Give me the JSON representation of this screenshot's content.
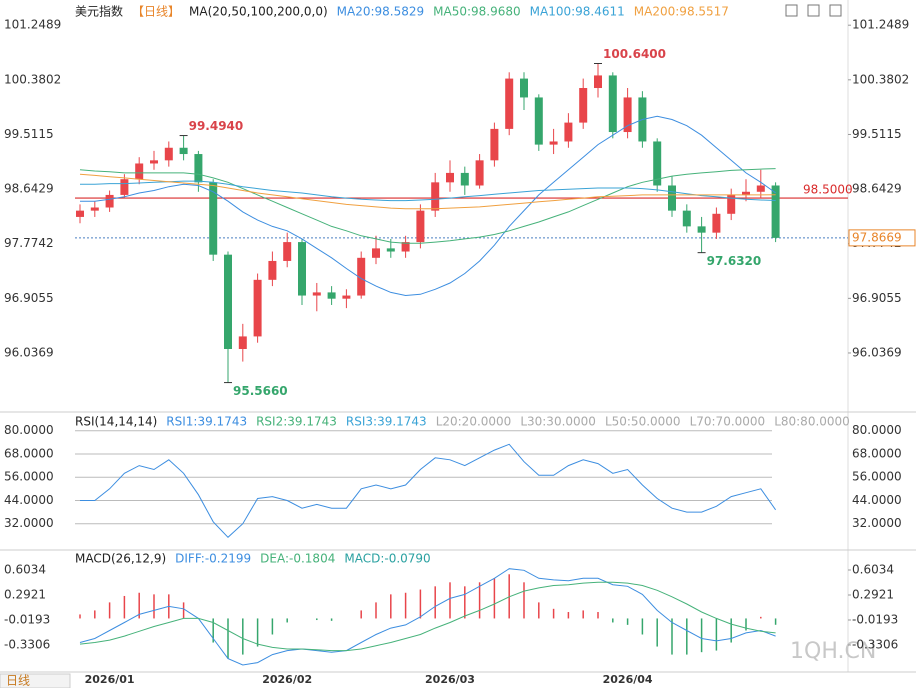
{
  "chart_data": [
    {
      "type": "candlestick",
      "title": "美元指数",
      "period": "【日线】",
      "indicator": "MA(20,50,100,200,0,0)",
      "categories": [
        null,
        null,
        "2026/01",
        null,
        null,
        null,
        null,
        null,
        null,
        null,
        null,
        null,
        null,
        null,
        "2026/02",
        null,
        null,
        null,
        null,
        null,
        null,
        null,
        null,
        null,
        null,
        "2026/03",
        null,
        null,
        null,
        null,
        null,
        null,
        null,
        null,
        null,
        null,
        null,
        "2026/04",
        null,
        null,
        null,
        null,
        null,
        null,
        null,
        null,
        null,
        null
      ],
      "candles": [
        [
          98.2,
          98.4,
          98.1,
          98.3
        ],
        [
          98.3,
          98.45,
          98.2,
          98.35
        ],
        [
          98.35,
          98.62,
          98.28,
          98.55
        ],
        [
          98.55,
          98.88,
          98.5,
          98.8
        ],
        [
          98.8,
          99.15,
          98.72,
          99.05
        ],
        [
          99.05,
          99.25,
          98.95,
          99.1
        ],
        [
          99.1,
          99.4,
          99.0,
          99.3
        ],
        [
          99.3,
          99.494,
          99.1,
          99.2
        ],
        [
          99.2,
          99.25,
          98.6,
          98.75
        ],
        [
          98.75,
          98.8,
          97.5,
          97.6
        ],
        [
          97.6,
          97.65,
          95.566,
          96.1
        ],
        [
          96.1,
          96.5,
          95.9,
          96.3
        ],
        [
          96.3,
          97.3,
          96.2,
          97.2
        ],
        [
          97.2,
          97.65,
          97.1,
          97.5
        ],
        [
          97.5,
          97.95,
          97.4,
          97.8
        ],
        [
          97.8,
          97.85,
          96.8,
          96.95
        ],
        [
          96.95,
          97.15,
          96.7,
          97.0
        ],
        [
          97.0,
          97.1,
          96.8,
          96.9
        ],
        [
          96.9,
          97.05,
          96.75,
          96.95
        ],
        [
          96.95,
          97.65,
          96.9,
          97.55
        ],
        [
          97.55,
          97.9,
          97.45,
          97.7
        ],
        [
          97.7,
          97.85,
          97.55,
          97.65
        ],
        [
          97.65,
          97.9,
          97.55,
          97.8
        ],
        [
          97.8,
          98.4,
          97.7,
          98.3
        ],
        [
          98.3,
          98.9,
          98.2,
          98.75
        ],
        [
          98.75,
          99.1,
          98.6,
          98.9
        ],
        [
          98.9,
          99.0,
          98.55,
          98.7
        ],
        [
          98.7,
          99.2,
          98.65,
          99.1
        ],
        [
          99.1,
          99.7,
          99.0,
          99.6
        ],
        [
          99.6,
          100.5,
          99.5,
          100.4
        ],
        [
          100.4,
          100.5,
          99.9,
          100.1
        ],
        [
          100.1,
          100.15,
          99.25,
          99.35
        ],
        [
          99.35,
          99.6,
          99.2,
          99.4
        ],
        [
          99.4,
          99.85,
          99.3,
          99.7
        ],
        [
          99.7,
          100.4,
          99.6,
          100.25
        ],
        [
          100.25,
          100.64,
          100.1,
          100.45
        ],
        [
          100.45,
          100.5,
          99.45,
          99.55
        ],
        [
          99.55,
          100.25,
          99.45,
          100.1
        ],
        [
          100.1,
          100.2,
          99.3,
          99.4
        ],
        [
          99.4,
          99.45,
          98.6,
          98.7
        ],
        [
          98.7,
          98.85,
          98.2,
          98.3
        ],
        [
          98.3,
          98.4,
          97.95,
          98.05
        ],
        [
          98.05,
          98.2,
          97.632,
          97.95
        ],
        [
          97.95,
          98.35,
          97.85,
          98.25
        ],
        [
          98.25,
          98.65,
          98.15,
          98.55
        ],
        [
          98.55,
          98.8,
          98.45,
          98.6
        ],
        [
          98.6,
          98.95,
          98.5,
          98.7
        ],
        [
          98.7,
          98.75,
          97.8,
          97.8669
        ]
      ],
      "up_color": "#e8454a",
      "down_color": "#35a66c",
      "series": [
        {
          "name": "MA20:98.5829",
          "color": "#3d8ee0",
          "values": [
            98.45,
            98.45,
            98.48,
            98.52,
            98.58,
            98.62,
            98.68,
            98.72,
            98.7,
            98.6,
            98.45,
            98.28,
            98.15,
            98.05,
            97.98,
            97.85,
            97.7,
            97.55,
            97.38,
            97.22,
            97.1,
            97.0,
            96.95,
            96.97,
            97.05,
            97.15,
            97.3,
            97.5,
            97.75,
            98.05,
            98.3,
            98.55,
            98.75,
            98.95,
            99.15,
            99.35,
            99.5,
            99.65,
            99.75,
            99.8,
            99.75,
            99.65,
            99.5,
            99.3,
            99.1,
            98.9,
            98.75,
            98.5829
          ]
        },
        {
          "name": "MA50:98.9680",
          "color": "#46b27a",
          "values": [
            98.95,
            98.93,
            98.92,
            98.9,
            98.9,
            98.9,
            98.9,
            98.9,
            98.88,
            98.82,
            98.75,
            98.65,
            98.55,
            98.45,
            98.35,
            98.25,
            98.15,
            98.05,
            97.98,
            97.9,
            97.85,
            97.8,
            97.78,
            97.78,
            97.8,
            97.82,
            97.85,
            97.88,
            97.92,
            97.98,
            98.05,
            98.12,
            98.2,
            98.28,
            98.38,
            98.48,
            98.58,
            98.68,
            98.75,
            98.8,
            98.85,
            98.88,
            98.9,
            98.92,
            98.94,
            98.95,
            98.96,
            98.968
          ]
        },
        {
          "name": "MA100:98.4611",
          "color": "#3aa3d6",
          "values": [
            98.72,
            98.72,
            98.73,
            98.73,
            98.74,
            98.75,
            98.76,
            98.77,
            98.77,
            98.75,
            98.72,
            98.68,
            98.65,
            98.62,
            98.6,
            98.58,
            98.55,
            98.52,
            98.5,
            98.48,
            98.47,
            98.46,
            98.46,
            98.47,
            98.48,
            98.5,
            98.52,
            98.54,
            98.56,
            98.58,
            98.6,
            98.62,
            98.63,
            98.64,
            98.65,
            98.66,
            98.66,
            98.66,
            98.65,
            98.63,
            98.6,
            98.57,
            98.54,
            98.52,
            98.5,
            98.48,
            98.47,
            98.4611
          ]
        },
        {
          "name": "MA200:98.5517",
          "color": "#f0a040",
          "values": [
            98.88,
            98.86,
            98.84,
            98.82,
            98.8,
            98.78,
            98.76,
            98.74,
            98.72,
            98.7,
            98.66,
            98.62,
            98.58,
            98.55,
            98.52,
            98.49,
            98.46,
            98.43,
            98.4,
            98.38,
            98.36,
            98.34,
            98.33,
            98.33,
            98.33,
            98.34,
            98.35,
            98.36,
            98.38,
            98.4,
            98.42,
            98.44,
            98.46,
            98.48,
            98.5,
            98.52,
            98.53,
            98.54,
            98.55,
            98.55,
            98.55,
            98.55,
            98.55,
            98.55,
            98.55,
            98.55,
            98.55,
            98.5517
          ]
        }
      ],
      "ylim": [
        95.13,
        101.57
      ],
      "yticks": [
        101.2489,
        100.3802,
        99.5115,
        98.6429,
        97.7742,
        96.9055,
        96.0369
      ],
      "annotations": [
        {
          "value": 99.494,
          "label": "99.4940"
        },
        {
          "value": 95.566,
          "label": "95.5660"
        },
        {
          "value": 100.64,
          "label": "100.6400"
        },
        {
          "value": 97.632,
          "label": "97.6320"
        }
      ],
      "ref_line": {
        "value": 98.5,
        "label": "98.5000",
        "color": "#d92b2b"
      },
      "last_price": {
        "value": 97.8669,
        "label": "97.8669",
        "color": "#e8852a"
      }
    },
    {
      "type": "line",
      "title": "RSI(14,14,14)",
      "ylim": [
        20,
        85
      ],
      "yticks": [
        {
          "value": 80,
          "label": "80.0000"
        },
        {
          "value": 68,
          "label": "68.0000"
        },
        {
          "value": 56,
          "label": "56.0000"
        },
        {
          "value": 44,
          "label": "44.0000"
        },
        {
          "value": 32,
          "label": "32.0000"
        }
      ],
      "grid": true,
      "series": [
        {
          "name": "RSI1:39.1743",
          "color": "#3d8ee0",
          "values": [
            44,
            44,
            50,
            58,
            62,
            60,
            65,
            58,
            47,
            33,
            25,
            32,
            45,
            46,
            44,
            40,
            42,
            40,
            40,
            50,
            52,
            50,
            52,
            60,
            66,
            65,
            62,
            66,
            70,
            73,
            64,
            57,
            57,
            62,
            65,
            63,
            58,
            60,
            52,
            45,
            40,
            38,
            38,
            41,
            46,
            48,
            50,
            39.1743
          ]
        }
      ],
      "legend": [
        {
          "label": "RSI2:39.1743",
          "color": "#46b27a"
        },
        {
          "label": "RSI3:39.1743",
          "color": "#3aa3d6"
        },
        {
          "label": "L20:20.0000",
          "color": "#aaaaaa"
        },
        {
          "label": "L30:30.0000",
          "color": "#aaaaaa"
        },
        {
          "label": "L50:50.0000",
          "color": "#aaaaaa"
        },
        {
          "label": "L70:70.0000",
          "color": "#aaaaaa"
        },
        {
          "label": "L80:80.0000",
          "color": "#aaaaaa"
        }
      ]
    },
    {
      "type": "macd",
      "title": "MACD(26,12,9)",
      "ylim": [
        -0.667,
        0.703
      ],
      "yticks": [
        0.6034,
        0.2921,
        -0.0193,
        -0.3306
      ],
      "series": [
        {
          "name": "DIFF:-0.2199",
          "color": "#3d8ee0",
          "values": [
            -0.3,
            -0.25,
            -0.15,
            -0.05,
            0.05,
            0.1,
            0.15,
            0.12,
            0.0,
            -0.25,
            -0.5,
            -0.58,
            -0.55,
            -0.45,
            -0.4,
            -0.38,
            -0.4,
            -0.42,
            -0.4,
            -0.3,
            -0.2,
            -0.12,
            -0.08,
            0.02,
            0.15,
            0.25,
            0.3,
            0.4,
            0.5,
            0.62,
            0.6,
            0.5,
            0.48,
            0.47,
            0.5,
            0.5,
            0.42,
            0.4,
            0.3,
            0.1,
            -0.05,
            -0.15,
            -0.25,
            -0.28,
            -0.25,
            -0.18,
            -0.15,
            -0.2199
          ]
        },
        {
          "name": "DEA:-0.1804",
          "color": "#46b27a",
          "values": [
            -0.32,
            -0.3,
            -0.27,
            -0.22,
            -0.16,
            -0.1,
            -0.05,
            0.0,
            0.0,
            -0.05,
            -0.15,
            -0.25,
            -0.32,
            -0.36,
            -0.38,
            -0.38,
            -0.39,
            -0.4,
            -0.4,
            -0.38,
            -0.34,
            -0.3,
            -0.25,
            -0.2,
            -0.12,
            -0.05,
            0.03,
            0.1,
            0.18,
            0.27,
            0.34,
            0.38,
            0.41,
            0.42,
            0.44,
            0.45,
            0.45,
            0.44,
            0.41,
            0.35,
            0.27,
            0.18,
            0.08,
            0.0,
            -0.07,
            -0.12,
            -0.16,
            -0.1804
          ]
        }
      ],
      "histogram": {
        "name": "MACD:-0.0790",
        "color": "#2aa1a1",
        "up_color": "#e8454a",
        "down_color": "#35a66c",
        "values": [
          0.05,
          0.1,
          0.2,
          0.28,
          0.32,
          0.3,
          0.3,
          0.2,
          0.0,
          -0.3,
          -0.5,
          -0.45,
          -0.35,
          -0.2,
          -0.05,
          0.0,
          -0.02,
          -0.03,
          0.0,
          0.1,
          0.2,
          0.3,
          0.32,
          0.36,
          0.4,
          0.45,
          0.4,
          0.45,
          0.5,
          0.55,
          0.45,
          0.2,
          0.12,
          0.08,
          0.1,
          0.08,
          -0.05,
          -0.08,
          -0.2,
          -0.35,
          -0.45,
          -0.45,
          -0.42,
          -0.4,
          -0.3,
          -0.15,
          0.02,
          -0.079
        ]
      }
    }
  ],
  "footer": {
    "period": "日线",
    "watermark": "1QH.CN"
  }
}
